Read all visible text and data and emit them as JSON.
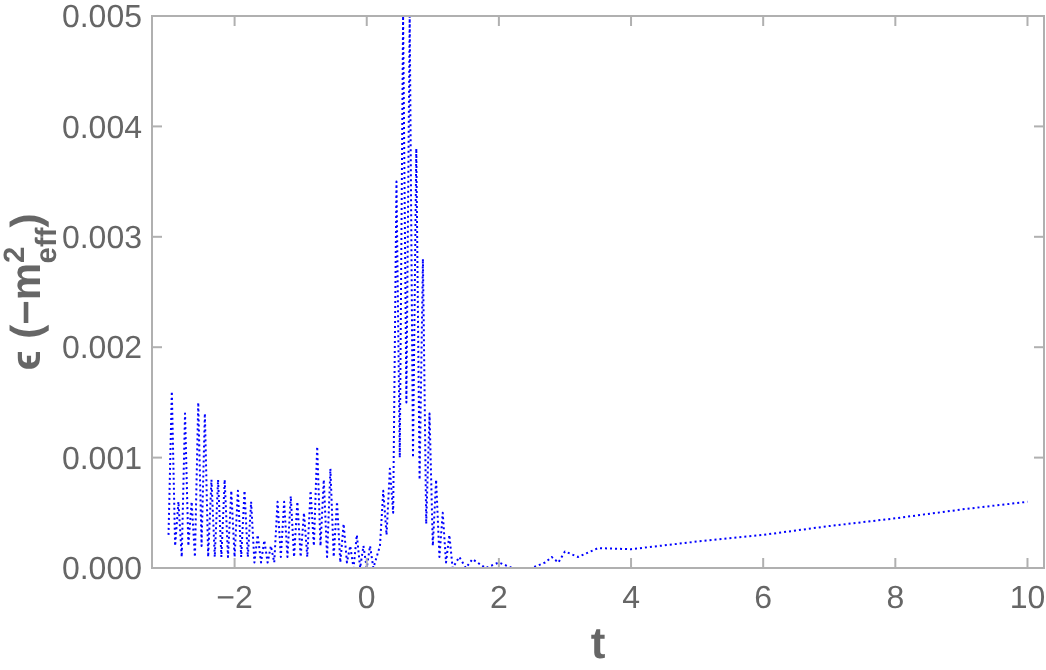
{
  "chart_data": {
    "type": "line",
    "xlabel": "t",
    "ylabel": "ϵ (−m$^{2}$$_{eff}$)",
    "xlim": [
      -3.25,
      10.25
    ],
    "ylim": [
      0,
      0.005
    ],
    "xticks": [
      {
        "value": -2,
        "label": "−2"
      },
      0,
      2,
      4,
      6,
      8,
      10
    ],
    "yticks": [
      {
        "value": 0,
        "label": "0.000"
      },
      {
        "value": 0.001,
        "label": "0.001"
      },
      {
        "value": 0.002,
        "label": "0.002"
      },
      {
        "value": 0.003,
        "label": "0.003"
      },
      {
        "value": 0.004,
        "label": "0.004"
      },
      {
        "value": 0.005,
        "label": "0.005"
      }
    ],
    "grid": false,
    "line_style": "dotted",
    "marker": "none",
    "x": [
      -3.0,
      -2.95,
      -2.9,
      -2.85,
      -2.8,
      -2.75,
      -2.7,
      -2.65,
      -2.6,
      -2.55,
      -2.5,
      -2.45,
      -2.4,
      -2.35,
      -2.3,
      -2.25,
      -2.2,
      -2.15,
      -2.1,
      -2.05,
      -2.0,
      -1.95,
      -1.9,
      -1.85,
      -1.8,
      -1.75,
      -1.7,
      -1.65,
      -1.6,
      -1.55,
      -1.5,
      -1.45,
      -1.4,
      -1.35,
      -1.3,
      -1.25,
      -1.2,
      -1.15,
      -1.1,
      -1.05,
      -1.0,
      -0.95,
      -0.9,
      -0.85,
      -0.8,
      -0.75,
      -0.7,
      -0.65,
      -0.6,
      -0.55,
      -0.5,
      -0.45,
      -0.4,
      -0.35,
      -0.3,
      -0.25,
      -0.2,
      -0.15,
      -0.1,
      -0.05,
      0.0,
      0.05,
      0.1,
      0.15,
      0.2,
      0.25,
      0.3,
      0.35,
      0.4,
      0.45,
      0.5,
      0.55,
      0.6,
      0.65,
      0.7,
      0.75,
      0.8,
      0.85,
      0.9,
      0.95,
      1.0,
      1.05,
      1.1,
      1.15,
      1.2,
      1.25,
      1.3,
      1.4,
      1.5,
      1.6,
      1.8,
      2.0,
      2.2,
      2.5,
      2.7,
      2.8,
      2.9,
      3.0,
      3.2,
      3.5,
      4.0,
      5.0,
      6.0,
      7.0,
      8.0,
      9.0,
      10.0
    ],
    "series": [
      {
        "color": "#0000ff",
        "values": [
          0.0003,
          0.0016,
          0.0002,
          0.0006,
          0.0001,
          0.0014,
          0.0002,
          0.0006,
          0.0001,
          0.0015,
          0.0002,
          0.0014,
          0.0001,
          0.0008,
          0.0001,
          0.0008,
          0.0001,
          0.0008,
          0.0001,
          0.0007,
          0.0001,
          0.0007,
          0.0001,
          0.0007,
          0.0001,
          0.0006,
          5e-05,
          0.0003,
          5e-05,
          0.00025,
          5e-05,
          0.0002,
          5e-05,
          0.0006,
          0.0001,
          0.0006,
          0.0001,
          0.00065,
          0.0001,
          0.0006,
          0.0001,
          0.0005,
          0.0001,
          0.0007,
          0.0002,
          0.0011,
          0.0002,
          0.0008,
          0.0001,
          0.0009,
          0.0001,
          0.0006,
          5e-05,
          0.0004,
          5e-05,
          0.0002,
          0.0,
          0.0003,
          0.0,
          0.0002,
          0.0,
          0.0002,
          0.0,
          0.0001,
          0.0002,
          0.0007,
          0.0003,
          0.0009,
          0.0005,
          0.0035,
          0.001,
          0.005,
          0.0015,
          0.005,
          0.001,
          0.0038,
          0.0008,
          0.0028,
          0.0004,
          0.0014,
          0.0002,
          0.0008,
          0.0001,
          0.0005,
          5e-05,
          0.0003,
          0.0,
          0.0001,
          0.0,
          8e-05,
          0.0,
          5e-05,
          0.0,
          0.0,
          5e-05,
          0.0001,
          5e-05,
          0.00015,
          0.0001,
          0.00018,
          0.00017,
          0.00024,
          0.0003,
          0.00038,
          0.00045,
          0.00053,
          0.0006
        ]
      }
    ]
  }
}
